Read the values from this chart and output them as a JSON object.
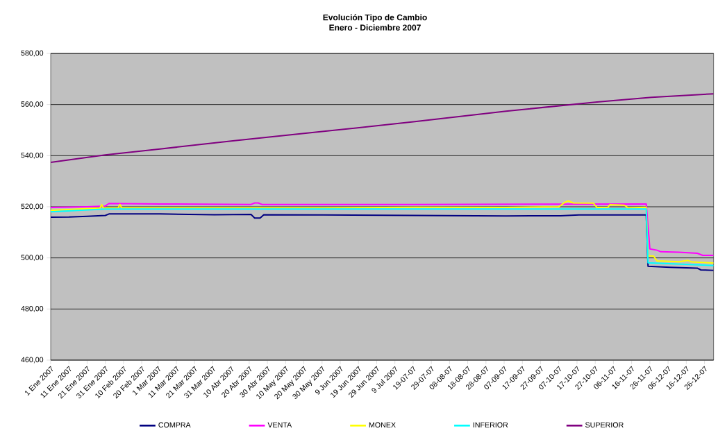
{
  "chart_data": {
    "type": "line",
    "title": "Evolución Tipo de Cambio",
    "subtitle": "Enero - Diciembre 2007",
    "xlim": [
      "2007-01-01",
      "2007-12-31"
    ],
    "xticks": [
      {
        "value": "2007-01-01",
        "label": "1 Ene 2007"
      },
      {
        "value": "2007-01-11",
        "label": "11 Ene 2007"
      },
      {
        "value": "2007-01-21",
        "label": "21 Ene 2007"
      },
      {
        "value": "2007-01-31",
        "label": "31 Ene 2007"
      },
      {
        "value": "2007-02-10",
        "label": "10 Feb 2007"
      },
      {
        "value": "2007-02-20",
        "label": "20 Feb 2007"
      },
      {
        "value": "2007-03-01",
        "label": "1 Mar 2007"
      },
      {
        "value": "2007-03-11",
        "label": "11 Mar 2007"
      },
      {
        "value": "2007-03-21",
        "label": "21 Mar 2007"
      },
      {
        "value": "2007-03-31",
        "label": "31 Mar 2007"
      },
      {
        "value": "2007-04-10",
        "label": "10 Abr 2007"
      },
      {
        "value": "2007-04-20",
        "label": "20 Abr 2007"
      },
      {
        "value": "2007-04-30",
        "label": "30 Abr 2007"
      },
      {
        "value": "2007-05-10",
        "label": "10 May 2007"
      },
      {
        "value": "2007-05-20",
        "label": "20 May 2007"
      },
      {
        "value": "2007-05-30",
        "label": "30 May 2007"
      },
      {
        "value": "2007-06-09",
        "label": "9 Jun 2007"
      },
      {
        "value": "2007-06-19",
        "label": "19 Jun 2007"
      },
      {
        "value": "2007-06-29",
        "label": "29 Jun 2007"
      },
      {
        "value": "2007-07-09",
        "label": "9 Jul 2007"
      },
      {
        "value": "2007-07-19",
        "label": "19-07-07"
      },
      {
        "value": "2007-07-29",
        "label": "29-07-07"
      },
      {
        "value": "2007-08-08",
        "label": "08-08-07"
      },
      {
        "value": "2007-08-18",
        "label": "18-08-07"
      },
      {
        "value": "2007-08-28",
        "label": "28-08-07"
      },
      {
        "value": "2007-09-07",
        "label": "07-09-07"
      },
      {
        "value": "2007-09-17",
        "label": "17-09-07"
      },
      {
        "value": "2007-09-27",
        "label": "27-09-07"
      },
      {
        "value": "2007-10-07",
        "label": "07-10-07"
      },
      {
        "value": "2007-10-17",
        "label": "17-10-07"
      },
      {
        "value": "2007-10-27",
        "label": "27-10-07"
      },
      {
        "value": "2007-11-06",
        "label": "06-11-07"
      },
      {
        "value": "2007-11-16",
        "label": "16-11-07"
      },
      {
        "value": "2007-11-26",
        "label": "26-11-07"
      },
      {
        "value": "2007-12-06",
        "label": "06-12-07"
      },
      {
        "value": "2007-12-16",
        "label": "16-12-07"
      },
      {
        "value": "2007-12-26",
        "label": "26-12-07"
      }
    ],
    "ylim": [
      460,
      580
    ],
    "yticks": [
      {
        "value": 460,
        "label": "460,00"
      },
      {
        "value": 480,
        "label": "480,00"
      },
      {
        "value": 500,
        "label": "500,00"
      },
      {
        "value": 520,
        "label": "520,00"
      },
      {
        "value": 540,
        "label": "540,00"
      },
      {
        "value": 560,
        "label": "560,00"
      },
      {
        "value": 580,
        "label": "580,00"
      }
    ],
    "grid": "y",
    "legend": "bottom",
    "marker": "none",
    "line_style": "solid",
    "series": [
      {
        "name": "COMPRA",
        "color": "#000080",
        "x": [
          "2007-01-01",
          "2007-01-11",
          "2007-01-21",
          "2007-01-31",
          "2007-02-02",
          "2007-03-02",
          "2007-04-01",
          "2007-04-21",
          "2007-04-23",
          "2007-04-26",
          "2007-04-28",
          "2007-05-31",
          "2007-07-20",
          "2007-09-08",
          "2007-10-08",
          "2007-10-18",
          "2007-11-24",
          "2007-11-25",
          "2007-12-07",
          "2007-12-22",
          "2007-12-24",
          "2007-12-31"
        ],
        "values": [
          515.9,
          516.0,
          516.3,
          516.6,
          517.2,
          517.2,
          516.9,
          517.0,
          515.6,
          515.6,
          516.9,
          516.8,
          516.6,
          516.4,
          516.5,
          516.8,
          516.8,
          496.7,
          496.3,
          496.0,
          495.3,
          495.1
        ]
      },
      {
        "name": "VENTA",
        "color": "#ff00ff",
        "x": [
          "2007-01-01",
          "2007-01-21",
          "2007-01-31",
          "2007-02-02",
          "2007-03-02",
          "2007-04-21",
          "2007-04-23",
          "2007-04-25",
          "2007-04-27",
          "2007-07-20",
          "2007-11-24",
          "2007-11-26",
          "2007-11-30",
          "2007-12-02",
          "2007-12-12",
          "2007-12-22",
          "2007-12-25",
          "2007-12-31"
        ],
        "values": [
          519.7,
          520.0,
          520.3,
          521.3,
          521.1,
          520.9,
          521.5,
          521.5,
          520.9,
          520.9,
          521.1,
          503.5,
          503.0,
          502.4,
          502.2,
          501.8,
          501.0,
          501.0
        ]
      },
      {
        "name": "MONEX",
        "color": "#ffff00",
        "x": [
          "2007-01-01",
          "2007-01-28",
          "2007-01-29",
          "2007-01-30",
          "2007-02-07",
          "2007-02-08",
          "2007-02-09",
          "2007-05-31",
          "2007-07-20",
          "2007-09-08",
          "2007-10-07",
          "2007-10-10",
          "2007-10-12",
          "2007-10-15",
          "2007-10-26",
          "2007-10-28",
          "2007-11-03",
          "2007-11-04",
          "2007-11-12",
          "2007-11-14",
          "2007-11-24",
          "2007-11-25",
          "2007-11-28",
          "2007-11-30",
          "2007-12-12",
          "2007-12-17",
          "2007-12-19",
          "2007-12-31"
        ],
        "values": [
          518.6,
          519.5,
          520.8,
          519.5,
          519.5,
          520.9,
          519.6,
          519.6,
          519.8,
          519.7,
          520.0,
          521.6,
          522.3,
          521.5,
          521.4,
          519.7,
          519.8,
          520.8,
          520.6,
          519.6,
          519.8,
          500.8,
          500.7,
          498.8,
          498.5,
          499.0,
          498.4,
          498.0
        ]
      },
      {
        "name": "INFERIOR",
        "color": "#00ffff",
        "x": [
          "2007-01-01",
          "2007-01-16",
          "2007-01-31",
          "2007-11-24",
          "2007-11-25",
          "2007-12-31"
        ],
        "values": [
          518.0,
          518.6,
          519.1,
          519.1,
          498.1,
          497.0
        ]
      },
      {
        "name": "SUPERIOR",
        "color": "#800080",
        "x": [
          "2007-01-01",
          "2007-01-31",
          "2007-03-02",
          "2007-04-11",
          "2007-05-31",
          "2007-07-20",
          "2007-09-08",
          "2007-10-28",
          "2007-11-27",
          "2007-12-31"
        ],
        "values": [
          537.4,
          540.3,
          542.6,
          545.8,
          549.5,
          553.3,
          557.4,
          561.0,
          562.8,
          564.2
        ]
      }
    ]
  }
}
